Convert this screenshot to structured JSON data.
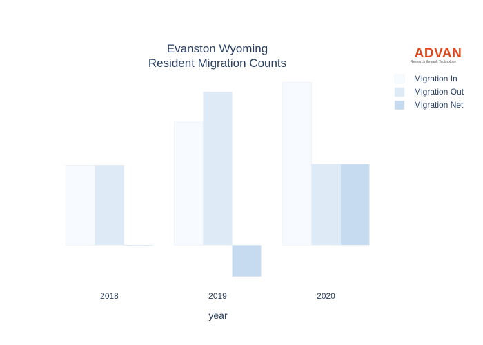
{
  "chart_data": {
    "type": "bar",
    "title_line1": "Evanston Wyoming",
    "title_line2": "Resident Migration Counts",
    "xlabel": "year",
    "ylabel": "",
    "categories": [
      "2018",
      "2019",
      "2020"
    ],
    "series": [
      {
        "name": "Migration In",
        "values": [
          140,
          215,
          285
        ],
        "color": "#f7fbff"
      },
      {
        "name": "Migration Out",
        "values": [
          140,
          268,
          142
        ],
        "color": "#deebf7"
      },
      {
        "name": "Migration Net",
        "values": [
          0,
          -55,
          142
        ],
        "color": "#c6dbef"
      }
    ],
    "ylim": [
      -60,
      290
    ],
    "grid": false,
    "legend_position": "top-right"
  },
  "logo": {
    "name": "ADVAN",
    "tagline": "Research through Technology"
  }
}
